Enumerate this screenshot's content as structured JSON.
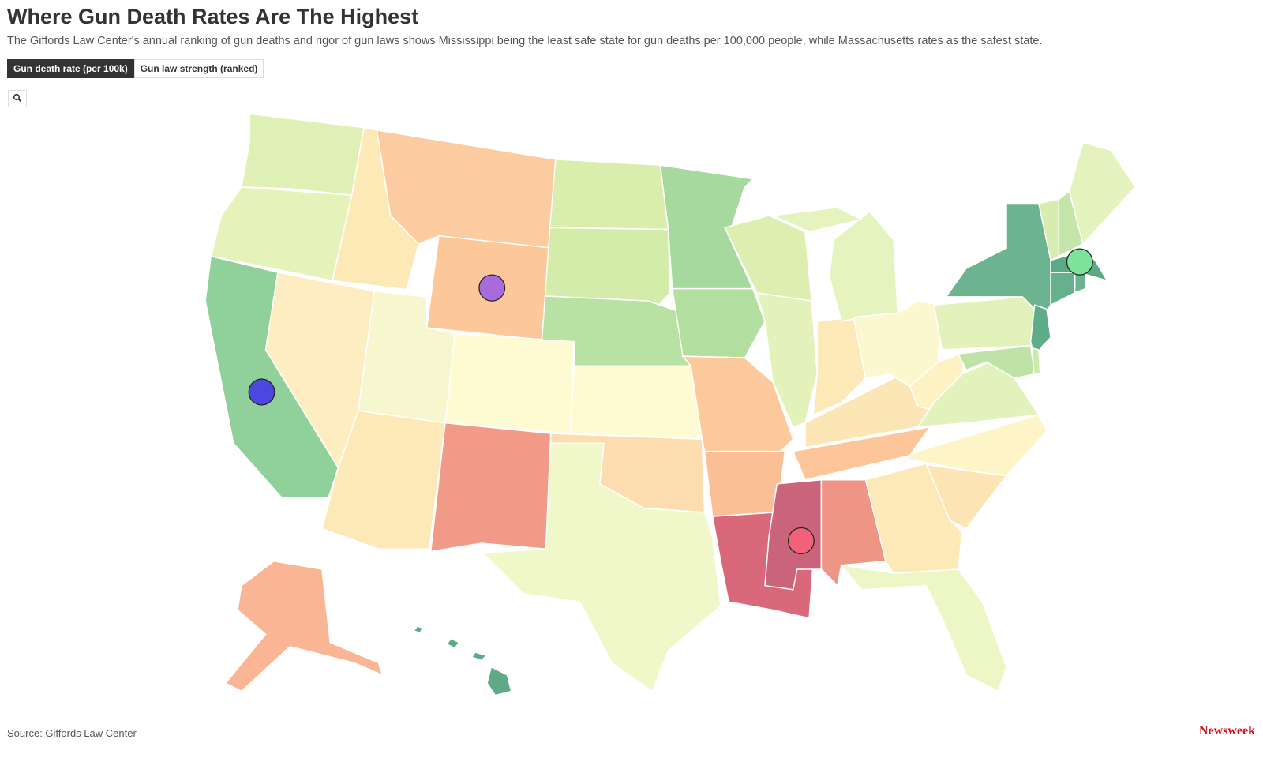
{
  "header": {
    "title": "Where Gun Death Rates Are The Highest",
    "subtitle": "The Giffords Law Center's annual ranking of gun deaths and rigor of gun laws shows Mississippi being the least safe state for gun deaths per 100,000 people, while Massachusetts rates as the safest state."
  },
  "tabs": [
    "Gun death rate (per 100k)",
    "Gun law strength (ranked)"
  ],
  "footer": {
    "source": "Source: Giffords Law Center",
    "brand": "Newsweek"
  }
}
